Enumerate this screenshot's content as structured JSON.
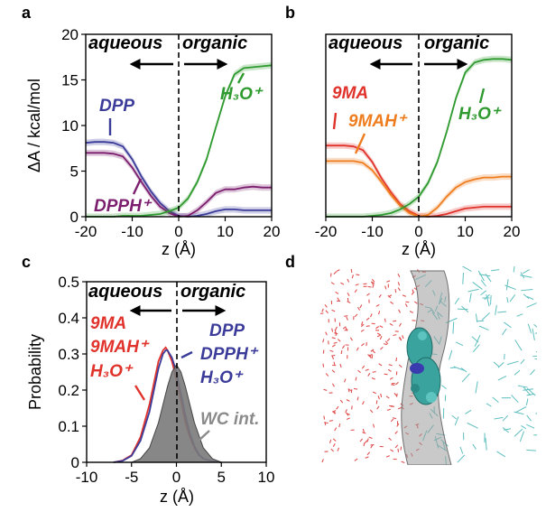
{
  "colors": {
    "DPP": "#3b3b9a",
    "DPPH": "#7b1e6e",
    "H3O": "#2f9a2f",
    "9MA": "#e0332b",
    "9MAH": "#ef7d1e",
    "WC": "#7f7f7f"
  },
  "chart_data": [
    {
      "id": "a",
      "type": "line",
      "panel_label": "a",
      "xlabel": "z (Å)",
      "ylabel": "ΔA / kcal/mol",
      "xlim": [
        -20,
        20
      ],
      "ylim": [
        0,
        20
      ],
      "xticks": [
        "-20",
        "-10",
        "0",
        "10",
        "20"
      ],
      "yticks": [
        "0",
        "5",
        "10",
        "15",
        "20"
      ],
      "phase_left": "aqueous",
      "phase_right": "organic",
      "annotations": [
        {
          "text": "DPP",
          "series": "DPP"
        },
        {
          "text": "DPPH⁺",
          "series": "DPPH"
        },
        {
          "text": "H₃O⁺",
          "series": "H3O"
        }
      ],
      "series": [
        {
          "key": "DPP",
          "x": [
            -20,
            -18,
            -16,
            -14,
            -12,
            -10,
            -8,
            -6,
            -4,
            -2,
            0,
            2,
            4,
            6,
            8,
            10,
            12,
            14,
            16,
            18,
            20
          ],
          "y": [
            8.1,
            8.2,
            8.2,
            8.1,
            7.7,
            6.3,
            4.4,
            2.8,
            1.5,
            0.6,
            0.1,
            0.0,
            0.1,
            0.3,
            0.6,
            0.8,
            0.8,
            0.7,
            0.7,
            0.7,
            0.7
          ]
        },
        {
          "key": "DPPH",
          "x": [
            -20,
            -18,
            -16,
            -14,
            -12,
            -10,
            -8,
            -6,
            -4,
            -2,
            0,
            2,
            4,
            6,
            8,
            10,
            12,
            14,
            16,
            18,
            20
          ],
          "y": [
            7.0,
            7.0,
            7.0,
            6.9,
            6.6,
            5.4,
            3.8,
            2.3,
            1.1,
            0.4,
            0.0,
            0.1,
            0.7,
            1.6,
            2.6,
            3.0,
            3.0,
            3.2,
            3.3,
            3.2,
            3.2
          ]
        },
        {
          "key": "H3O",
          "x": [
            -20,
            -18,
            -16,
            -14,
            -12,
            -10,
            -8,
            -6,
            -4,
            -2,
            0,
            2,
            4,
            6,
            8,
            10,
            12,
            14,
            16,
            18,
            20
          ],
          "y": [
            0.0,
            0.0,
            0.0,
            0.0,
            0.1,
            0.1,
            0.1,
            0.2,
            0.3,
            0.6,
            1.0,
            2.0,
            3.8,
            6.3,
            9.8,
            13.2,
            15.6,
            16.3,
            16.4,
            16.5,
            16.6
          ]
        }
      ]
    },
    {
      "id": "b",
      "type": "line",
      "panel_label": "b",
      "xlabel": "z (Å)",
      "xlim": [
        -20,
        20
      ],
      "ylim": [
        0,
        20
      ],
      "xticks": [
        "-20",
        "-10",
        "0",
        "10",
        "20"
      ],
      "phase_left": "aqueous",
      "phase_right": "organic",
      "annotations": [
        {
          "text": "9MA",
          "series": "9MA"
        },
        {
          "text": "9MAH⁺",
          "series": "9MAH"
        },
        {
          "text": "H₃O⁺",
          "series": "H3O"
        }
      ],
      "series": [
        {
          "key": "9MA",
          "x": [
            -20,
            -18,
            -16,
            -14,
            -12,
            -10,
            -8,
            -6,
            -4,
            -2,
            0,
            2,
            4,
            6,
            8,
            10,
            12,
            14,
            16,
            18,
            20
          ],
          "y": [
            7.8,
            7.8,
            7.8,
            7.7,
            7.3,
            6.0,
            4.2,
            2.7,
            1.4,
            0.6,
            0.1,
            0.0,
            0.1,
            0.3,
            0.6,
            0.9,
            1.0,
            1.1,
            1.1,
            1.1,
            1.1
          ]
        },
        {
          "key": "9MAH",
          "x": [
            -20,
            -18,
            -16,
            -14,
            -12,
            -10,
            -8,
            -6,
            -4,
            -2,
            0,
            2,
            4,
            6,
            8,
            10,
            12,
            14,
            16,
            18,
            20
          ],
          "y": [
            6.1,
            6.1,
            6.1,
            6.1,
            5.9,
            5.1,
            3.8,
            2.4,
            1.2,
            0.4,
            0.0,
            0.2,
            1.0,
            2.2,
            3.2,
            3.8,
            4.1,
            4.3,
            4.3,
            4.4,
            4.4
          ]
        },
        {
          "key": "H3O",
          "x": [
            -20,
            -18,
            -16,
            -14,
            -12,
            -10,
            -8,
            -6,
            -4,
            -2,
            0,
            2,
            4,
            6,
            8,
            10,
            12,
            14,
            16,
            18,
            20
          ],
          "y": [
            0.0,
            0.0,
            0.0,
            0.0,
            0.0,
            0.1,
            0.2,
            0.4,
            0.8,
            1.4,
            2.2,
            3.7,
            6.0,
            9.3,
            13.0,
            15.8,
            16.9,
            17.2,
            17.3,
            17.3,
            17.2
          ]
        }
      ]
    },
    {
      "id": "c",
      "type": "area",
      "panel_label": "c",
      "xlabel": "z (Å)",
      "ylabel": "Probability",
      "xlim": [
        -10,
        10
      ],
      "ylim": [
        0,
        0.5
      ],
      "xticks": [
        "-10",
        "-5",
        "0",
        "5",
        "10"
      ],
      "yticks": [
        "0",
        "0.1",
        "0.2",
        "0.3",
        "0.4",
        "0.5"
      ],
      "phase_left": "aqueous",
      "phase_right": "organic",
      "legend_left": [
        "9MA",
        "9MAH⁺",
        "H₃O⁺"
      ],
      "legend_right": [
        "DPP",
        "DPPH⁺",
        "H₃O⁺"
      ],
      "wc_label": "WC int.",
      "series": [
        {
          "key": "9MA",
          "x": [
            -7,
            -6,
            -5,
            -4,
            -3,
            -2.5,
            -2,
            -1.5,
            -1.2,
            -1,
            -0.5,
            0,
            0.5,
            1,
            1.5,
            2,
            2.5,
            3,
            4,
            5
          ],
          "y": [
            0,
            0.005,
            0.02,
            0.07,
            0.16,
            0.22,
            0.28,
            0.31,
            0.318,
            0.31,
            0.28,
            0.23,
            0.17,
            0.11,
            0.07,
            0.04,
            0.02,
            0.01,
            0.003,
            0
          ]
        },
        {
          "key": "DPP",
          "x": [
            -7,
            -6,
            -5,
            -4,
            -3,
            -2.5,
            -2,
            -1.5,
            -1.2,
            -1,
            -0.5,
            0,
            0.5,
            1,
            1.5,
            2,
            2.5,
            3,
            4,
            5
          ],
          "y": [
            0,
            0.004,
            0.018,
            0.06,
            0.14,
            0.2,
            0.26,
            0.3,
            0.31,
            0.31,
            0.29,
            0.25,
            0.19,
            0.13,
            0.08,
            0.045,
            0.022,
            0.01,
            0.003,
            0
          ]
        },
        {
          "key": "WC",
          "x": [
            -5,
            -4,
            -3,
            -2,
            -1.5,
            -1,
            -0.5,
            0,
            0.5,
            1,
            1.5,
            2,
            3,
            4,
            5
          ],
          "y": [
            0,
            0.01,
            0.04,
            0.11,
            0.16,
            0.21,
            0.25,
            0.27,
            0.25,
            0.21,
            0.16,
            0.11,
            0.04,
            0.01,
            0
          ]
        }
      ]
    },
    {
      "id": "d",
      "type": "other",
      "panel_label": "d"
    }
  ]
}
